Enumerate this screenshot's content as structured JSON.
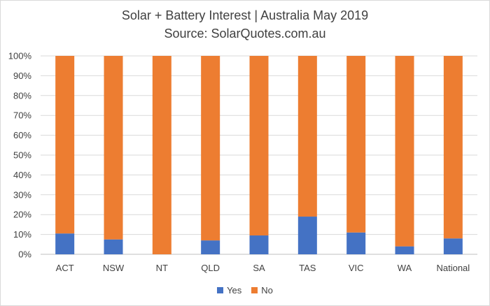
{
  "chart_data": {
    "type": "bar",
    "stacked": true,
    "title": "Solar + Battery Interest  | Australia May 2019",
    "subtitle": "Source: SolarQuotes.com.au",
    "categories": [
      "ACT",
      "NSW",
      "NT",
      "QLD",
      "SA",
      "TAS",
      "VIC",
      "WA",
      "National"
    ],
    "series": [
      {
        "name": "Yes",
        "color": "#4472c4",
        "values": [
          10.5,
          7.5,
          0,
          7,
          9.5,
          19,
          11,
          4,
          8
        ]
      },
      {
        "name": "No",
        "color": "#ed7d31",
        "values": [
          89.5,
          92.5,
          100,
          93,
          90.5,
          81,
          89,
          96,
          92
        ]
      }
    ],
    "ylim": [
      0,
      100
    ],
    "yticks": [
      "0%",
      "10%",
      "20%",
      "30%",
      "40%",
      "50%",
      "60%",
      "70%",
      "80%",
      "90%",
      "100%"
    ],
    "grid": true,
    "legend_position": "bottom"
  }
}
